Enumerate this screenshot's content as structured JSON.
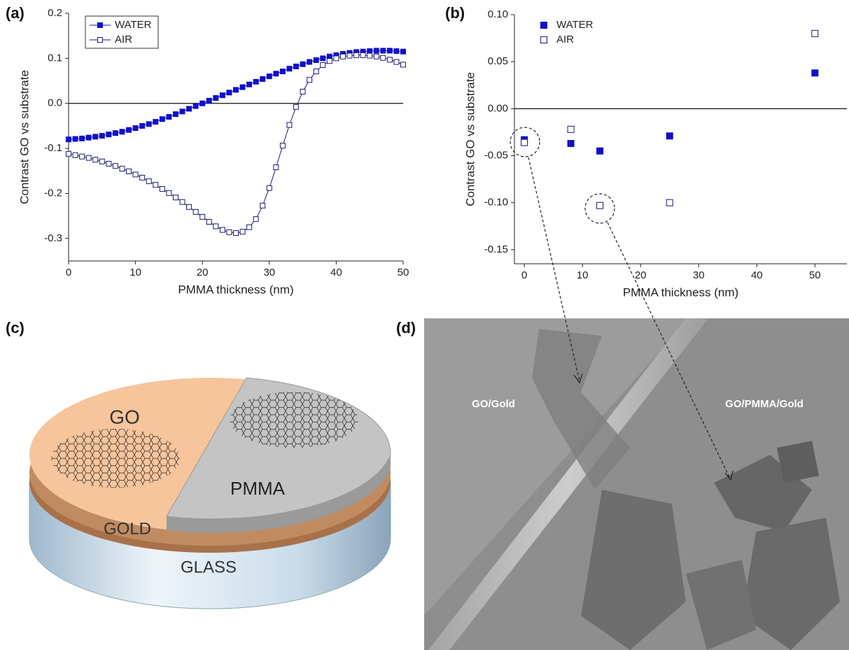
{
  "chart_data": [
    {
      "type": "line",
      "panel_label": "(a)",
      "x_label": "PMMA thickness (nm)",
      "y_label": "Contrast GO vs substrate",
      "x": [
        0,
        1,
        2,
        3,
        4,
        5,
        6,
        7,
        8,
        9,
        10,
        11,
        12,
        13,
        14,
        15,
        16,
        17,
        18,
        19,
        20,
        21,
        22,
        23,
        24,
        25,
        26,
        27,
        28,
        29,
        30,
        31,
        32,
        33,
        34,
        35,
        36,
        37,
        38,
        39,
        40,
        41,
        42,
        43,
        44,
        45,
        46,
        47,
        48,
        49,
        50
      ],
      "series": [
        {
          "name": "WATER",
          "color": "#1010c8",
          "marker_fill": true,
          "line": true,
          "values": [
            -0.08,
            -0.079,
            -0.078,
            -0.076,
            -0.074,
            -0.072,
            -0.069,
            -0.066,
            -0.063,
            -0.059,
            -0.055,
            -0.05,
            -0.046,
            -0.041,
            -0.035,
            -0.03,
            -0.024,
            -0.018,
            -0.012,
            -0.006,
            0.0,
            0.006,
            0.012,
            0.018,
            0.024,
            0.03,
            0.036,
            0.042,
            0.048,
            0.054,
            0.06,
            0.066,
            0.071,
            0.077,
            0.082,
            0.087,
            0.092,
            0.096,
            0.1,
            0.104,
            0.107,
            0.11,
            0.112,
            0.114,
            0.115,
            0.116,
            0.117,
            0.117,
            0.117,
            0.116,
            0.115
          ]
        },
        {
          "name": "AIR",
          "color": "#1a1a6e",
          "marker_fill": false,
          "line": true,
          "values": [
            -0.112,
            -0.115,
            -0.118,
            -0.121,
            -0.125,
            -0.129,
            -0.134,
            -0.139,
            -0.145,
            -0.151,
            -0.158,
            -0.165,
            -0.173,
            -0.181,
            -0.19,
            -0.199,
            -0.209,
            -0.219,
            -0.23,
            -0.241,
            -0.252,
            -0.263,
            -0.273,
            -0.281,
            -0.286,
            -0.288,
            -0.285,
            -0.275,
            -0.257,
            -0.227,
            -0.188,
            -0.142,
            -0.094,
            -0.048,
            -0.008,
            0.026,
            0.052,
            0.071,
            0.085,
            0.094,
            0.1,
            0.104,
            0.106,
            0.107,
            0.107,
            0.106,
            0.104,
            0.101,
            0.097,
            0.092,
            0.086
          ]
        }
      ],
      "xlim": [
        0,
        50
      ],
      "xticks": [
        0,
        10,
        20,
        30,
        40,
        50
      ],
      "ylim": [
        -0.35,
        0.2
      ],
      "yticks": [
        0.2,
        0.1,
        {
          "value": 0,
          "label": "0.0"
        },
        -0.1,
        -0.2,
        -0.3
      ],
      "reference_line": 0,
      "legend": "upper left",
      "legend_box": true
    },
    {
      "type": "scatter",
      "panel_label": "(b)",
      "x_label": "PMMA thickness (nm)",
      "y_label": "Contrast GO vs substrate",
      "x": [
        0,
        8,
        13,
        25,
        50
      ],
      "series": [
        {
          "name": "WATER",
          "color": "#1010c8",
          "marker_fill": true,
          "line": false,
          "values": [
            -0.033,
            -0.037,
            -0.045,
            -0.029,
            0.038
          ]
        },
        {
          "name": "AIR",
          "color": "#1a1a6e",
          "marker_fill": false,
          "line": false,
          "values": [
            -0.036,
            -0.022,
            -0.103,
            -0.1,
            0.08
          ]
        }
      ],
      "xlim": [
        -1.7,
        55.5
      ],
      "xticks": [
        0,
        10,
        20,
        30,
        40,
        50
      ],
      "ylim": [
        -0.165,
        0.1
      ],
      "yticks": [
        {
          "value": 0.1,
          "label": "0.10"
        },
        0.05,
        {
          "value": 0,
          "label": "0.00"
        },
        -0.05,
        {
          "value": -0.1,
          "label": "-0.10"
        },
        -0.15
      ],
      "reference_line": 0,
      "legend": "upper left",
      "legend_box": false
    }
  ],
  "panels": {
    "c": {
      "label": "(c)",
      "layers": [
        "GO",
        "PMMA",
        "GOLD",
        "GLASS"
      ]
    },
    "d": {
      "label": "(d)",
      "regions": [
        "GO/Gold",
        "GO/PMMA/Gold"
      ]
    }
  }
}
